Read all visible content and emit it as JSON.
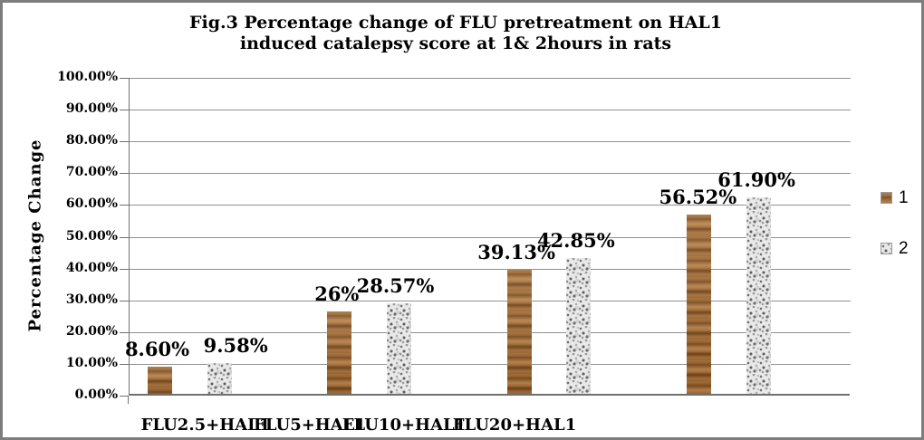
{
  "window": {
    "background": "#ffffff",
    "border_color": "#7d7d7d"
  },
  "chart_data": {
    "type": "bar",
    "title_lines": [
      "Fig.3 Percentage change of FLU pretreatment on HAL1",
      "induced catalepsy score at 1& 2hours in rats"
    ],
    "ylabel": "Percentage Change",
    "xlabel": "",
    "ylim": [
      0,
      100
    ],
    "ytick_step": 10,
    "ytick_labels": [
      "100.00%",
      "90.00%",
      "80.00%",
      "70.00%",
      "60.00%",
      "50.00%",
      "40.00%",
      "30.00%",
      "20.00%",
      "10.00%",
      "0.00%"
    ],
    "grid": true,
    "legend_position": "right",
    "categories": [
      "FLU2.5+HAL1",
      "FLU5+HAL1",
      "FLU10+HAL1",
      "FLU20+HAL1"
    ],
    "series": [
      {
        "name": "1",
        "texture": "wood",
        "color": "#9a6530",
        "values": [
          8.6,
          26,
          39.13,
          56.52
        ],
        "data_labels": [
          "8.60%",
          "26%",
          "39.13%",
          "56.52%"
        ]
      },
      {
        "name": "2",
        "texture": "speckle",
        "color": "#d9d9d9",
        "values": [
          9.58,
          28.57,
          42.85,
          61.9
        ],
        "data_labels": [
          "9.58%",
          "28.57%",
          "42.85%",
          "61.90%"
        ]
      }
    ]
  }
}
